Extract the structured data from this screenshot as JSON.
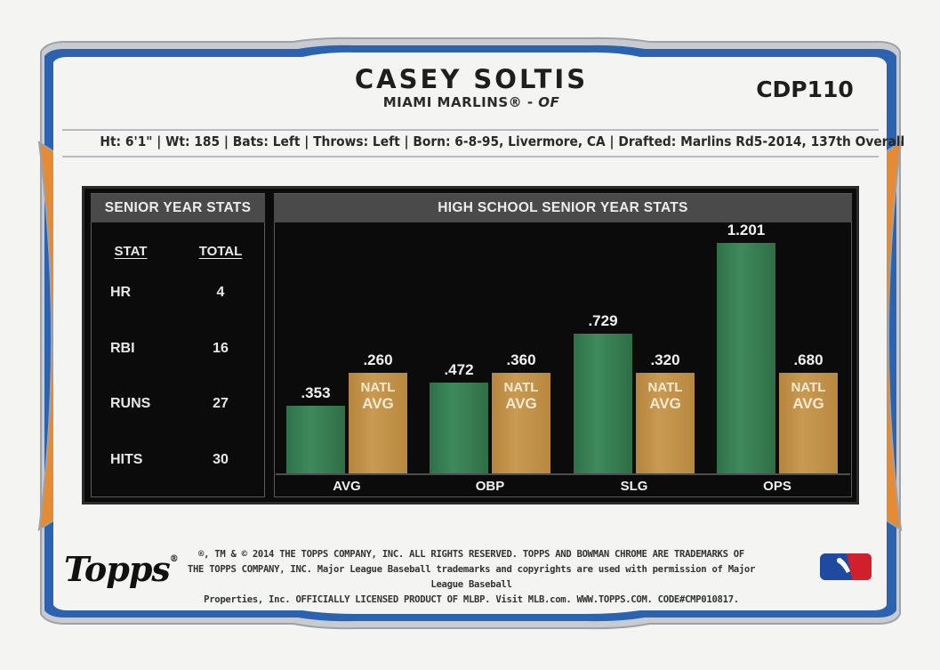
{
  "player": {
    "name": "CASEY SOLTIS",
    "team": "MIAMI MARLINS®",
    "separator": " - ",
    "position": "OF",
    "card_number": "CDP110"
  },
  "bio_line": "Ht: 6'1\" | Wt: 185 | Bats: Left | Throws: Left | Born: 6-8-95, Livermore, CA | Drafted: Marlins Rd5-2014, 137th Overall",
  "senior_stats": {
    "header": "SENIOR YEAR STATS",
    "col_stat": "STAT",
    "col_total": "TOTAL",
    "rows": [
      {
        "stat": "HR",
        "total": "4"
      },
      {
        "stat": "RBI",
        "total": "16"
      },
      {
        "stat": "RUNS",
        "total": "27"
      },
      {
        "stat": "HITS",
        "total": "30"
      }
    ]
  },
  "chart_data": {
    "type": "bar",
    "title": "HIGH SCHOOL SENIOR YEAR STATS",
    "categories": [
      "AVG",
      "OBP",
      "SLG",
      "OPS"
    ],
    "series": [
      {
        "name": "",
        "values": [
          0.353,
          0.472,
          0.729,
          1.201
        ],
        "labels": [
          ".353",
          ".472",
          ".729",
          "1.201"
        ]
      },
      {
        "name": "NATL AVG",
        "values": [
          0.26,
          0.36,
          0.32,
          0.68
        ],
        "labels": [
          ".260",
          ".360",
          ".320",
          ".680"
        ]
      }
    ],
    "bar_label_line1": "NATL",
    "bar_label_line2": "AVG",
    "colors": {
      "player": "#3f8a5c",
      "natl": "#c99a52"
    }
  },
  "legal": {
    "line1": "®, TM & © 2014 THE TOPPS COMPANY, INC. ALL RIGHTS RESERVED. TOPPS AND BOWMAN CHROME ARE TRADEMARKS OF",
    "line2": "THE TOPPS COMPANY, INC. Major League Baseball trademarks and copyrights are used with permission of Major League Baseball",
    "line3": "Properties, Inc. OFFICIALLY LICENSED PRODUCT OF MLBP. Visit MLB.com. WWW.TOPPS.COM. CODE#CMP010817."
  },
  "logo": {
    "topps": "Topps",
    "topps_mark": "®"
  },
  "colors": {
    "frame_blue": "#2c63b0",
    "frame_orange": "#e58b33",
    "panel": "#0b0b0b"
  }
}
